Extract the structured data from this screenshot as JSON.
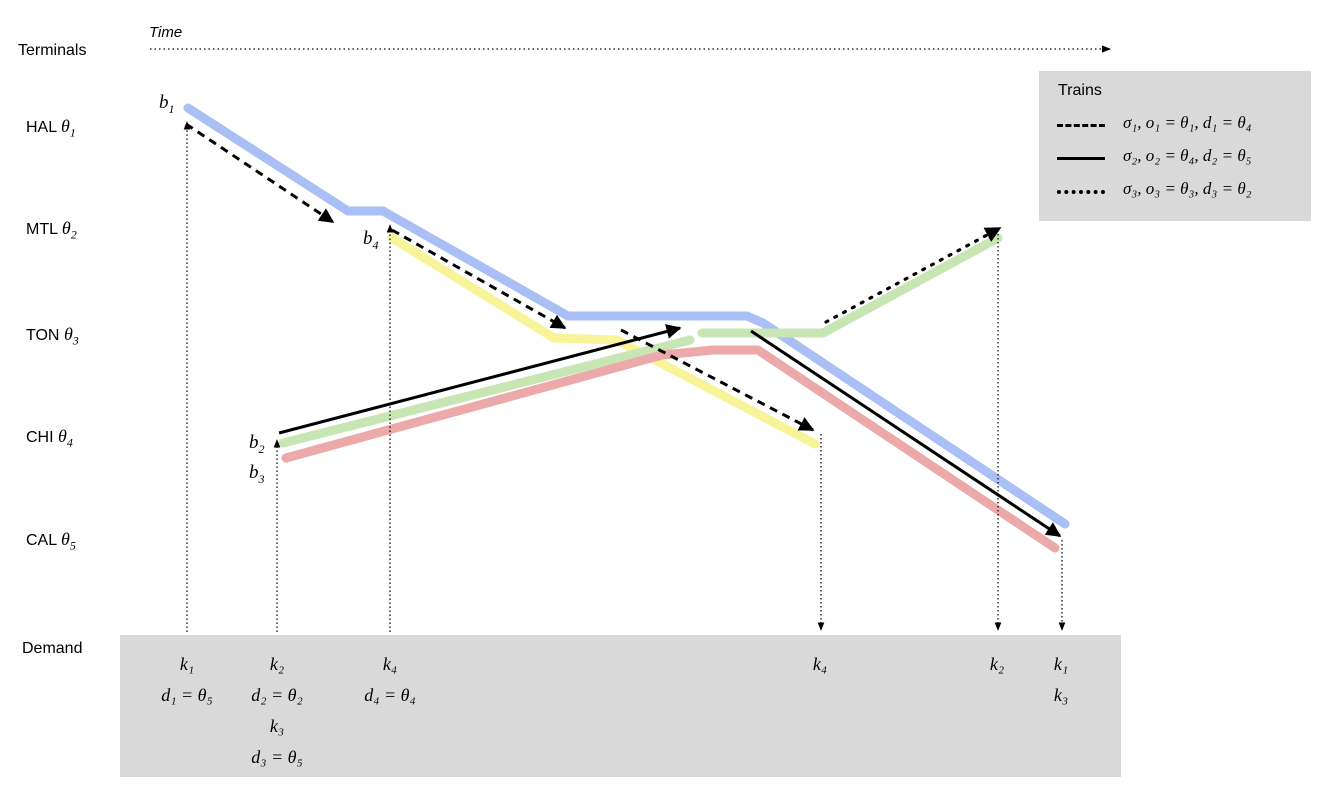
{
  "header": {
    "terminals_label": "Terminals",
    "time_label": "Time"
  },
  "terminals": [
    {
      "name": "HAL",
      "sub": "1"
    },
    {
      "name": "MTL",
      "sub": "2"
    },
    {
      "name": "TON",
      "sub": "3"
    },
    {
      "name": "CHI",
      "sub": "4"
    },
    {
      "name": "CAL",
      "sub": "5"
    }
  ],
  "batches": [
    {
      "base": "b",
      "sub": "1"
    },
    {
      "base": "b",
      "sub": "4"
    },
    {
      "base": "b",
      "sub": "2"
    },
    {
      "base": "b",
      "sub": "3"
    }
  ],
  "legend": {
    "title": "Trains",
    "entries": [
      {
        "style": "dashed",
        "text": "σ₁, o₁ = θ₁, d₁ = θ₄"
      },
      {
        "style": "solid",
        "text": "σ₂, o₂ = θ₄, d₂ = θ₅"
      },
      {
        "style": "dotted",
        "text": "σ₃, o₃ = θ₃, d₃ = θ₂"
      }
    ]
  },
  "colors": {
    "blue": "#a9bff5",
    "yellow": "#f7f49a",
    "green": "#c8e5b4",
    "red": "#eba9a9",
    "demand_bg": "#d9d9d9"
  },
  "demand": {
    "label": "Demand",
    "columns": [
      {
        "lines": [
          "k₁",
          "d₁ = θ₅"
        ]
      },
      {
        "lines": [
          "k₂",
          "d₂ = θ₂",
          "k₃",
          "d₃ = θ₅"
        ]
      },
      {
        "lines": [
          "k₄",
          "d₄ = θ₄"
        ]
      },
      {
        "lines": [
          "k₄"
        ]
      },
      {
        "lines": [
          "k₂"
        ]
      },
      {
        "lines": [
          "k₁",
          "k₃"
        ]
      }
    ]
  }
}
